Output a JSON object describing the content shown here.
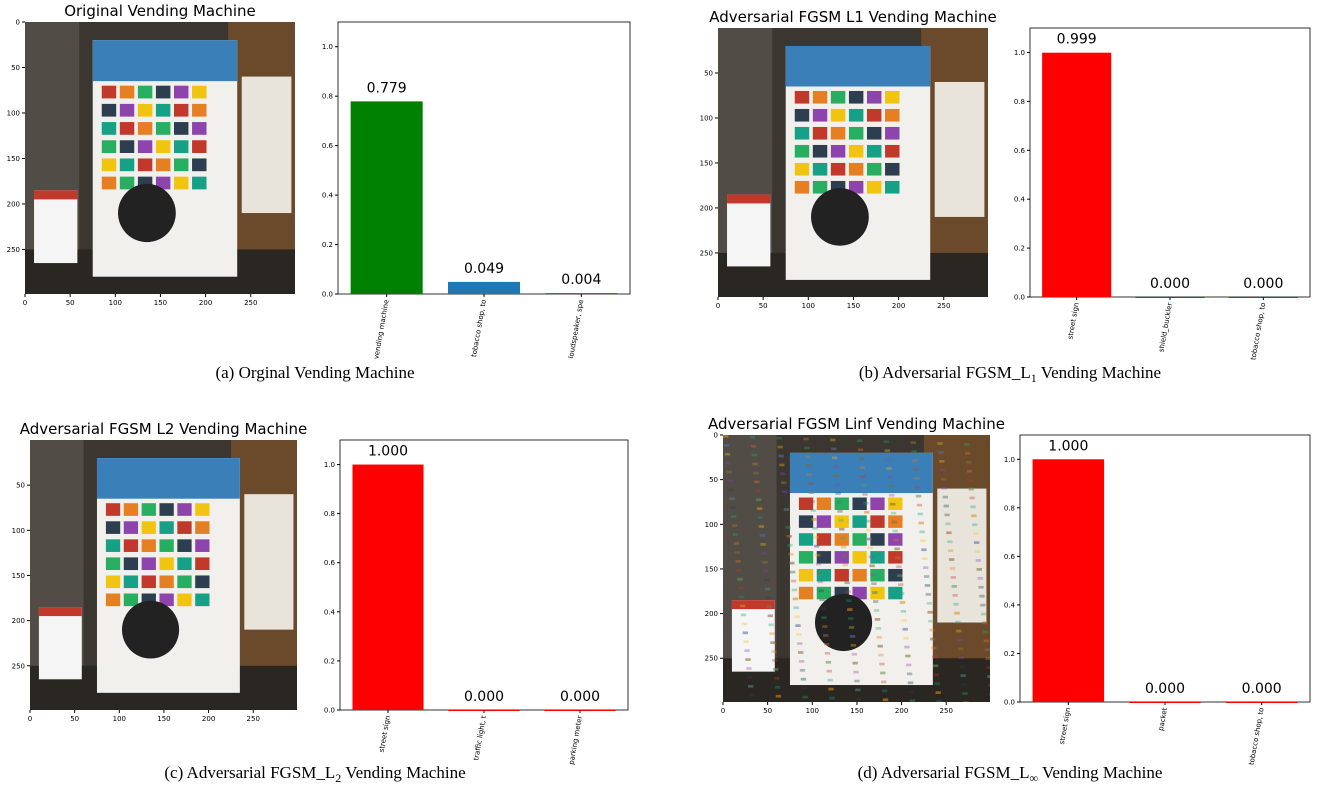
{
  "chart_data": [
    {
      "type": "image",
      "title": "Original Vending Machine",
      "xlim": [
        0,
        299
      ],
      "ylim": [
        299,
        0
      ],
      "xticks": [
        0,
        50,
        100,
        150,
        200,
        250
      ],
      "yticks": [
        0,
        50,
        100,
        150,
        200,
        250
      ]
    },
    {
      "type": "bar",
      "categories": [
        "vending machine",
        "tobacco shop, to",
        "loudspeaker, spe"
      ],
      "values": [
        0.779,
        0.049,
        0.004
      ],
      "value_labels": [
        "0.779",
        "0.049",
        "0.004"
      ],
      "colors": [
        "#008000",
        "#1f77b4",
        "#1f77b4"
      ],
      "ylim": [
        0,
        1.1
      ],
      "yticks": [
        {
          "value": 0,
          "label": "0.0"
        },
        {
          "value": 0.2,
          "label": "0.2"
        },
        {
          "value": 0.4,
          "label": "0.4"
        },
        {
          "value": 0.6,
          "label": "0.6"
        },
        {
          "value": 0.8,
          "label": "0.8"
        },
        {
          "value": 1,
          "label": "1.0"
        }
      ]
    },
    {
      "type": "image",
      "title": "Adversarial FGSM L1 Vending Machine",
      "xlim": [
        0,
        299
      ],
      "ylim": [
        299,
        0
      ],
      "xticks": [
        0,
        50,
        100,
        150,
        200,
        250
      ],
      "yticks": [
        50,
        100,
        150,
        200,
        250
      ]
    },
    {
      "type": "bar",
      "categories": [
        "street sign",
        "shield_buckler",
        "tobacco shop, to"
      ],
      "values": [
        0.999,
        0,
        0
      ],
      "value_labels": [
        "0.999",
        "0.000",
        "0.000"
      ],
      "colors": [
        "#ff0000",
        "#ff0000",
        "#ff0000"
      ],
      "ylim": [
        0,
        1.1
      ],
      "yticks": [
        {
          "value": 0,
          "label": "0.0"
        },
        {
          "value": 0.2,
          "label": "0.2"
        },
        {
          "value": 0.4,
          "label": "0.4"
        },
        {
          "value": 0.6,
          "label": "0.6"
        },
        {
          "value": 0.8,
          "label": "0.8"
        },
        {
          "value": 1,
          "label": "1.0"
        }
      ]
    },
    {
      "type": "image",
      "title": "Adversarial FGSM L2 Vending Machine",
      "xlim": [
        0,
        299
      ],
      "ylim": [
        299,
        0
      ],
      "xticks": [
        0,
        50,
        100,
        150,
        200,
        250
      ],
      "yticks": [
        50,
        100,
        150,
        200,
        250
      ]
    },
    {
      "type": "bar",
      "categories": [
        "street sign",
        "traffic light, t",
        "parking meter"
      ],
      "values": [
        1,
        0,
        0
      ],
      "value_labels": [
        "1.000",
        "0.000",
        "0.000"
      ],
      "colors": [
        "#ff0000",
        "#ff0000",
        "#ff0000"
      ],
      "ylim": [
        0,
        1.1
      ],
      "yticks": [
        {
          "value": 0,
          "label": "0.0"
        },
        {
          "value": 0.2,
          "label": "0.2"
        },
        {
          "value": 0.4,
          "label": "0.4"
        },
        {
          "value": 0.6,
          "label": "0.6"
        },
        {
          "value": 0.8,
          "label": "0.8"
        },
        {
          "value": 1,
          "label": "1.0"
        }
      ]
    },
    {
      "type": "image",
      "title": "Adversarial FGSM Linf Vending Machine",
      "xlim": [
        0,
        299
      ],
      "ylim": [
        299,
        0
      ],
      "xticks": [
        0,
        50,
        100,
        150,
        200,
        250
      ],
      "yticks": [
        0,
        50,
        100,
        150,
        200,
        250
      ]
    },
    {
      "type": "bar",
      "categories": [
        "street sign",
        "packet",
        "tobacco shop, to"
      ],
      "values": [
        1,
        0,
        0
      ],
      "value_labels": [
        "1.000",
        "0.000",
        "0.000"
      ],
      "colors": [
        "#ff0000",
        "#ff0000",
        "#ff0000"
      ],
      "ylim": [
        0,
        1.1
      ],
      "yticks": [
        {
          "value": 0,
          "label": "0.0"
        },
        {
          "value": 0.2,
          "label": "0.2"
        },
        {
          "value": 0.4,
          "label": "0.4"
        },
        {
          "value": 0.6,
          "label": "0.6"
        },
        {
          "value": 0.8,
          "label": "0.8"
        },
        {
          "value": 1,
          "label": "1.0"
        }
      ]
    }
  ],
  "captions": [
    {
      "text": "(a) Orginal Vending Machine"
    },
    {
      "text": "(b) Adversarial FGSM_L",
      "sub": "1",
      "after": " Vending Machine"
    },
    {
      "text": "(c) Adversarial FGSM_L",
      "sub": "2",
      "after": " Vending Machine"
    },
    {
      "text": "(d) Adversarial FGSM_L",
      "sub": "∞",
      "after": " Vending Machine"
    }
  ]
}
